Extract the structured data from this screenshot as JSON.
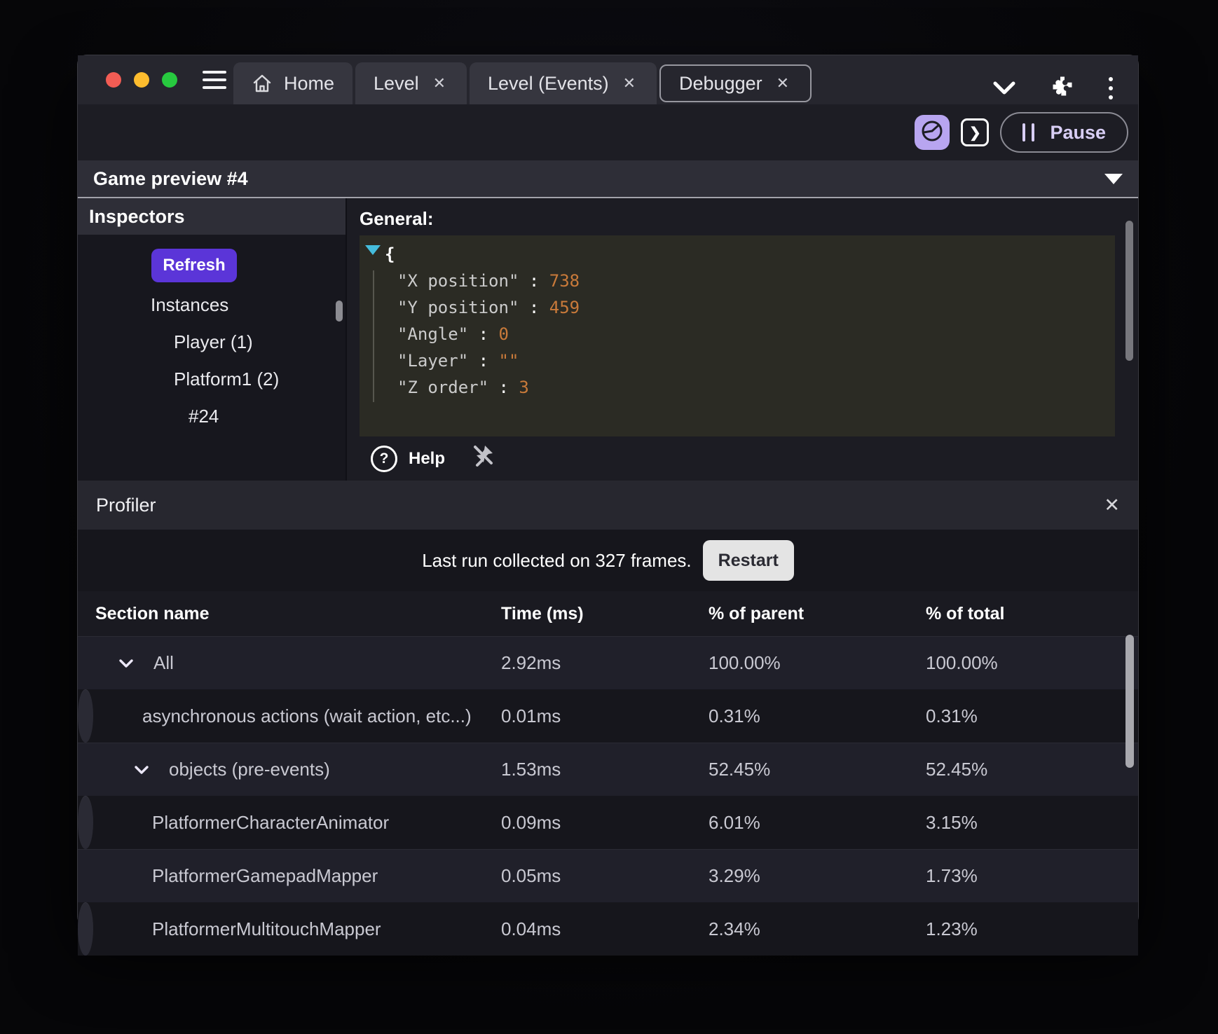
{
  "icons": {
    "close": "✕",
    "question": "?",
    "console_glyph": "❯"
  },
  "window": {
    "tabs": [
      {
        "label": "Home",
        "icon": "home",
        "closable": false,
        "active": false
      },
      {
        "label": "Level",
        "closable": true,
        "active": false
      },
      {
        "label": "Level (Events)",
        "closable": true,
        "active": false
      },
      {
        "label": "Debugger",
        "closable": true,
        "active": true
      }
    ],
    "toolbar": {
      "pause_label": "Pause"
    }
  },
  "game_preview": {
    "title": "Game preview #4"
  },
  "inspectors": {
    "title": "Inspectors",
    "refresh_label": "Refresh",
    "tree": [
      {
        "label": "Instances",
        "level": 0
      },
      {
        "label": "Player (1)",
        "level": 1
      },
      {
        "label": "Platform1 (2)",
        "level": 1
      },
      {
        "label": "#24",
        "level": 2
      }
    ]
  },
  "general": {
    "title": "General:",
    "open_brace": "{",
    "entries": [
      {
        "key": "\"X position\"",
        "sep": " : ",
        "value": "738"
      },
      {
        "key": "\"Y position\"",
        "sep": " : ",
        "value": "459"
      },
      {
        "key": "\"Angle\"",
        "sep": " : ",
        "value": "0"
      },
      {
        "key": "\"Layer\"",
        "sep": " : ",
        "value": "\"\""
      },
      {
        "key": "\"Z order\"",
        "sep": " : ",
        "value": "3"
      }
    ],
    "help_label": "Help"
  },
  "profiler": {
    "title": "Profiler",
    "status_text": "Last run collected on 327 frames.",
    "restart_label": "Restart",
    "columns": [
      "Section name",
      "Time (ms)",
      "% of parent",
      "% of total"
    ],
    "rows": [
      {
        "name": "All",
        "time": "2.92ms",
        "parent": "100.00%",
        "total": "100.00%",
        "chevron": true,
        "level": 0,
        "shade": "dark"
      },
      {
        "name": "asynchronous actions (wait action, etc...)",
        "time": "0.01ms",
        "parent": "0.31%",
        "total": "0.31%",
        "chevron": false,
        "level": 1,
        "shade": "light"
      },
      {
        "name": "objects (pre-events)",
        "time": "1.53ms",
        "parent": "52.45%",
        "total": "52.45%",
        "chevron": true,
        "level": 1,
        "shade": "dark"
      },
      {
        "name": "PlatformerCharacterAnimator",
        "time": "0.09ms",
        "parent": "6.01%",
        "total": "3.15%",
        "chevron": false,
        "level": 2,
        "shade": "light"
      },
      {
        "name": "PlatformerGamepadMapper",
        "time": "0.05ms",
        "parent": "3.29%",
        "total": "1.73%",
        "chevron": false,
        "level": 2,
        "shade": "dark"
      },
      {
        "name": "PlatformerMultitouchMapper",
        "time": "0.04ms",
        "parent": "2.34%",
        "total": "1.23%",
        "chevron": false,
        "level": 2,
        "shade": "light"
      }
    ]
  },
  "colors": {
    "accent_purple": "#5b35d8",
    "accent_lavender": "#b8a5f0",
    "json_value_orange": "#c97a3a",
    "json_collapse_cyan": "#45bcdc",
    "traffic_red": "#f25c54",
    "traffic_yellow": "#fdbc2e",
    "traffic_green": "#27c93f",
    "restart_bg": "#e4e4e4"
  }
}
